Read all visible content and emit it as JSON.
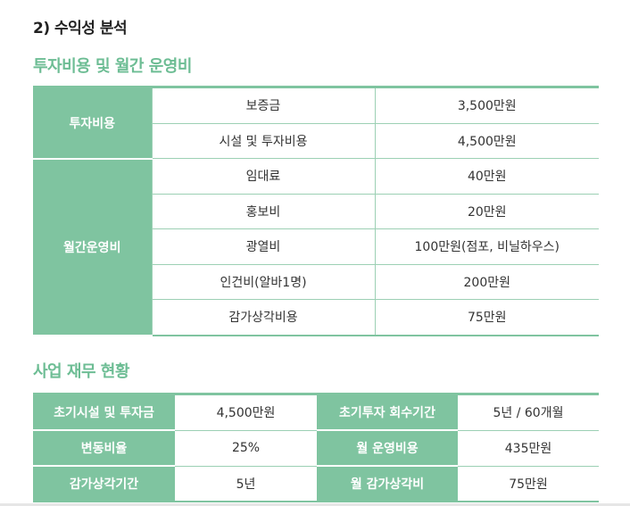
{
  "section_title": "2) 수익성 분석",
  "investment": {
    "heading": "투자비용 및 월간 운영비",
    "groups": [
      {
        "category": "투자비용",
        "rows": [
          {
            "item": "보증금",
            "amount": "3,500만원"
          },
          {
            "item": "시설 및 투자비용",
            "amount": "4,500만원"
          }
        ]
      },
      {
        "category": "월간운영비",
        "rows": [
          {
            "item": "임대료",
            "amount": "40만원"
          },
          {
            "item": "홍보비",
            "amount": "20만원"
          },
          {
            "item": "광열비",
            "amount": "100만원(점포, 비닐하우스)"
          },
          {
            "item": "인건비(알바1명)",
            "amount": "200만원"
          },
          {
            "item": "감가상각비용",
            "amount": "75만원"
          }
        ]
      }
    ]
  },
  "finance": {
    "heading": "사업 재무 현황",
    "rows": [
      {
        "label1": "초기시설 및 투자금",
        "value1": "4,500만원",
        "label2": "초기투자 회수기간",
        "value2": "5년 / 60개월"
      },
      {
        "label1": "변동비율",
        "value1": "25%",
        "label2": "월 운영비용",
        "value2": "435만원"
      },
      {
        "label1": "감가상각기간",
        "value1": "5년",
        "label2": "월 감가상각비",
        "value2": "75만원"
      }
    ]
  },
  "colors": {
    "accent": "#7fc4a0",
    "heading_green": "#6dbd94"
  }
}
